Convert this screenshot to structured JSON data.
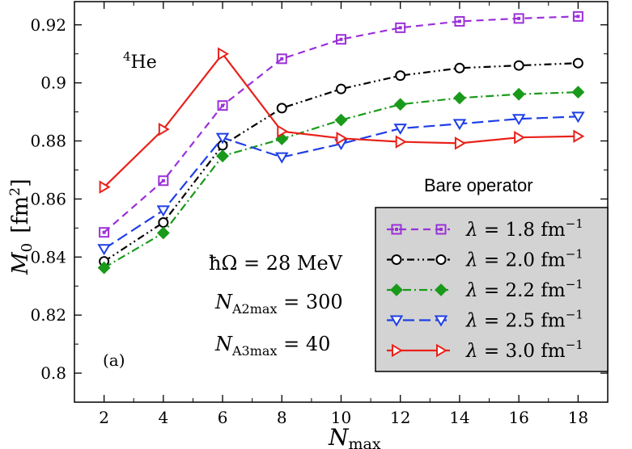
{
  "chart_data": {
    "type": "line",
    "title": "",
    "xlabel_main": "N",
    "xlabel_sub": "max",
    "ylabel_main": "M",
    "ylabel_sub": "0",
    "ylabel_units": "[fm",
    "ylabel_units_sup": "2",
    "ylabel_units_close": "]",
    "xlim": [
      1,
      19
    ],
    "ylim": [
      0.79,
      0.928
    ],
    "xticks": [
      2,
      4,
      6,
      8,
      10,
      12,
      14,
      16,
      18
    ],
    "xtick_labels": [
      "2",
      "4",
      "6",
      "8",
      "10",
      "12",
      "14",
      "16",
      "18"
    ],
    "yticks": [
      0.8,
      0.82,
      0.84,
      0.86,
      0.88,
      0.9,
      0.92
    ],
    "ytick_labels": [
      "0.8",
      "0.82",
      "0.84",
      "0.86",
      "0.88",
      "0.9",
      "0.92"
    ],
    "x": [
      2,
      4,
      6,
      8,
      10,
      12,
      14,
      16,
      18
    ],
    "series": [
      {
        "name": "1.8",
        "values": [
          0.8485,
          0.8663,
          0.8922,
          0.9083,
          0.915,
          0.919,
          0.9212,
          0.9222,
          0.9229
        ],
        "color": "#9b30d9",
        "marker": "square",
        "dash": "9,6"
      },
      {
        "name": "2.0",
        "values": [
          0.8385,
          0.8519,
          0.8785,
          0.8913,
          0.8979,
          0.9025,
          0.9051,
          0.906,
          0.9068
        ],
        "color": "#000000",
        "marker": "circle",
        "dash": "9,4,2,4,2,4"
      },
      {
        "name": "2.2",
        "values": [
          0.8363,
          0.8483,
          0.8748,
          0.8807,
          0.8872,
          0.8926,
          0.8948,
          0.8961,
          0.8968
        ],
        "color": "#1a9a1a",
        "marker": "diamond",
        "dash": "10,4,2,4"
      },
      {
        "name": "2.5",
        "values": [
          0.8428,
          0.8561,
          0.8811,
          0.8744,
          0.879,
          0.8843,
          0.8859,
          0.8876,
          0.8884
        ],
        "color": "#1f3fe6",
        "marker": "triangle-down",
        "dash": "14,6"
      },
      {
        "name": "3.0",
        "values": [
          0.8641,
          0.884,
          0.91,
          0.8833,
          0.8809,
          0.8797,
          0.8792,
          0.8812,
          0.8816
        ],
        "color": "#e8221a",
        "marker": "triangle-right",
        "dash": ""
      }
    ],
    "legend": {
      "position": "bottom-right",
      "label_prefix": "λ = ",
      "label_unit": " fm",
      "label_sup": "−1"
    },
    "annotations": {
      "nucleus_sup": "4",
      "nucleus": "He",
      "operator": "Bare operator",
      "panel": "(a)",
      "hw_lhs": "ħΩ = 28 MeV",
      "na2_main": "N",
      "na2_sub": "A2max",
      "na2_rhs": " = 300",
      "na3_main": "N",
      "na3_sub": "A3max",
      "na3_rhs": " = 40"
    }
  }
}
